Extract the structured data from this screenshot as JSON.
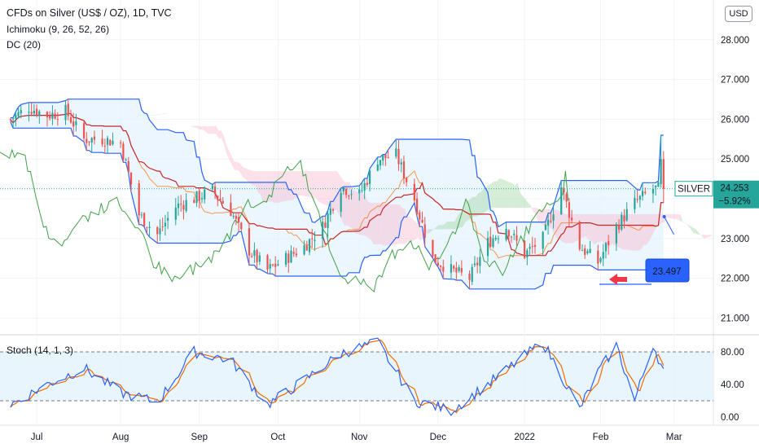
{
  "legend": {
    "title": "CFDs on Silver (US$ / OZ), 1D, TVC",
    "ichimoku": "Ichimoku (9, 26, 52, 26)",
    "dc": "DC (20)",
    "stoch": "Stoch (14, 1, 3)"
  },
  "currency_button": "USD",
  "colors": {
    "up": "#26a69a",
    "down": "#ef5350",
    "dc_line": "#2962ff",
    "dc_fill": "#e3f2fd",
    "kumo_bull": "#a5d6a7",
    "kumo_bear": "#f8bbd0",
    "tenkan": "#c62828",
    "kijun": "#ef6c00",
    "chikou": "#43a047",
    "stoch_k": "#2962ff",
    "stoch_d": "#ef6c00",
    "stoch_band": "#e3f2fd",
    "annotation_box": "#2962ff",
    "arrow": "#f23645"
  },
  "labels": {
    "symbol_tag": "SILVER",
    "last_price": "24.253",
    "change": "−5.92%",
    "annotation_value": "23.497"
  },
  "chart_data": [
    {
      "type": "candlestick",
      "title": "CFDs on Silver (US$ / OZ), 1D, TVC",
      "y_ticks": [
        "28.000",
        "27.000",
        "26.000",
        "25.000",
        "24.000",
        "23.000",
        "22.000",
        "21.000"
      ],
      "ylim": [
        20.6,
        29.0
      ],
      "x_ticks": [
        "Jul",
        "Aug",
        "Sep",
        "Oct",
        "Nov",
        "Dec",
        "2022",
        "Feb",
        "Mar"
      ],
      "close_path": [
        [
          "2021-06-21",
          26.0
        ],
        [
          "2021-06-28",
          26.3
        ],
        [
          "2021-07-05",
          26.1
        ],
        [
          "2021-07-12",
          26.2
        ],
        [
          "2021-07-19",
          25.5
        ],
        [
          "2021-07-26",
          25.5
        ],
        [
          "2021-08-02",
          25.4
        ],
        [
          "2021-08-09",
          23.6
        ],
        [
          "2021-08-16",
          23.1
        ],
        [
          "2021-08-23",
          23.8
        ],
        [
          "2021-08-30",
          24.0
        ],
        [
          "2021-09-06",
          24.2
        ],
        [
          "2021-09-13",
          23.7
        ],
        [
          "2021-09-20",
          22.7
        ],
        [
          "2021-09-27",
          22.2
        ],
        [
          "2021-10-04",
          22.5
        ],
        [
          "2021-10-11",
          22.8
        ],
        [
          "2021-10-18",
          23.3
        ],
        [
          "2021-10-25",
          24.3
        ],
        [
          "2021-11-01",
          24.1
        ],
        [
          "2021-11-08",
          25.0
        ],
        [
          "2021-11-15",
          25.1
        ],
        [
          "2021-11-22",
          24.0
        ],
        [
          "2021-11-29",
          22.5
        ],
        [
          "2021-12-06",
          22.2
        ],
        [
          "2021-12-13",
          22.0
        ],
        [
          "2021-12-20",
          22.9
        ],
        [
          "2021-12-27",
          23.3
        ],
        [
          "2022-01-03",
          22.6
        ],
        [
          "2022-01-10",
          23.0
        ],
        [
          "2022-01-17",
          24.3
        ],
        [
          "2022-01-24",
          22.8
        ],
        [
          "2022-01-31",
          22.4
        ],
        [
          "2022-02-07",
          23.3
        ],
        [
          "2022-02-14",
          23.9
        ],
        [
          "2022-02-21",
          24.25
        ]
      ],
      "last_price": 24.253,
      "change_pct": -5.92,
      "annotation_value": 23.497
    },
    {
      "type": "line",
      "title": "Stoch (14, 1, 3)",
      "y_ticks": [
        "80.00",
        "40.00",
        "0.00"
      ],
      "ylim": [
        -10,
        100
      ],
      "bands": [
        20,
        80
      ],
      "k_path": [
        [
          "2021-06-21",
          15
        ],
        [
          "2021-07-05",
          40
        ],
        [
          "2021-07-19",
          60
        ],
        [
          "2021-08-02",
          30
        ],
        [
          "2021-08-16",
          18
        ],
        [
          "2021-08-30",
          80
        ],
        [
          "2021-09-13",
          70
        ],
        [
          "2021-09-27",
          15
        ],
        [
          "2021-10-11",
          45
        ],
        [
          "2021-10-25",
          78
        ],
        [
          "2021-11-08",
          92
        ],
        [
          "2021-11-22",
          20
        ],
        [
          "2021-12-06",
          8
        ],
        [
          "2021-12-20",
          40
        ],
        [
          "2022-01-03",
          75
        ],
        [
          "2022-01-10",
          92
        ],
        [
          "2022-01-24",
          10
        ],
        [
          "2022-01-31",
          55
        ],
        [
          "2022-02-07",
          88
        ],
        [
          "2022-02-14",
          20
        ],
        [
          "2022-02-21",
          90
        ],
        [
          "2022-02-25",
          55
        ]
      ]
    }
  ]
}
